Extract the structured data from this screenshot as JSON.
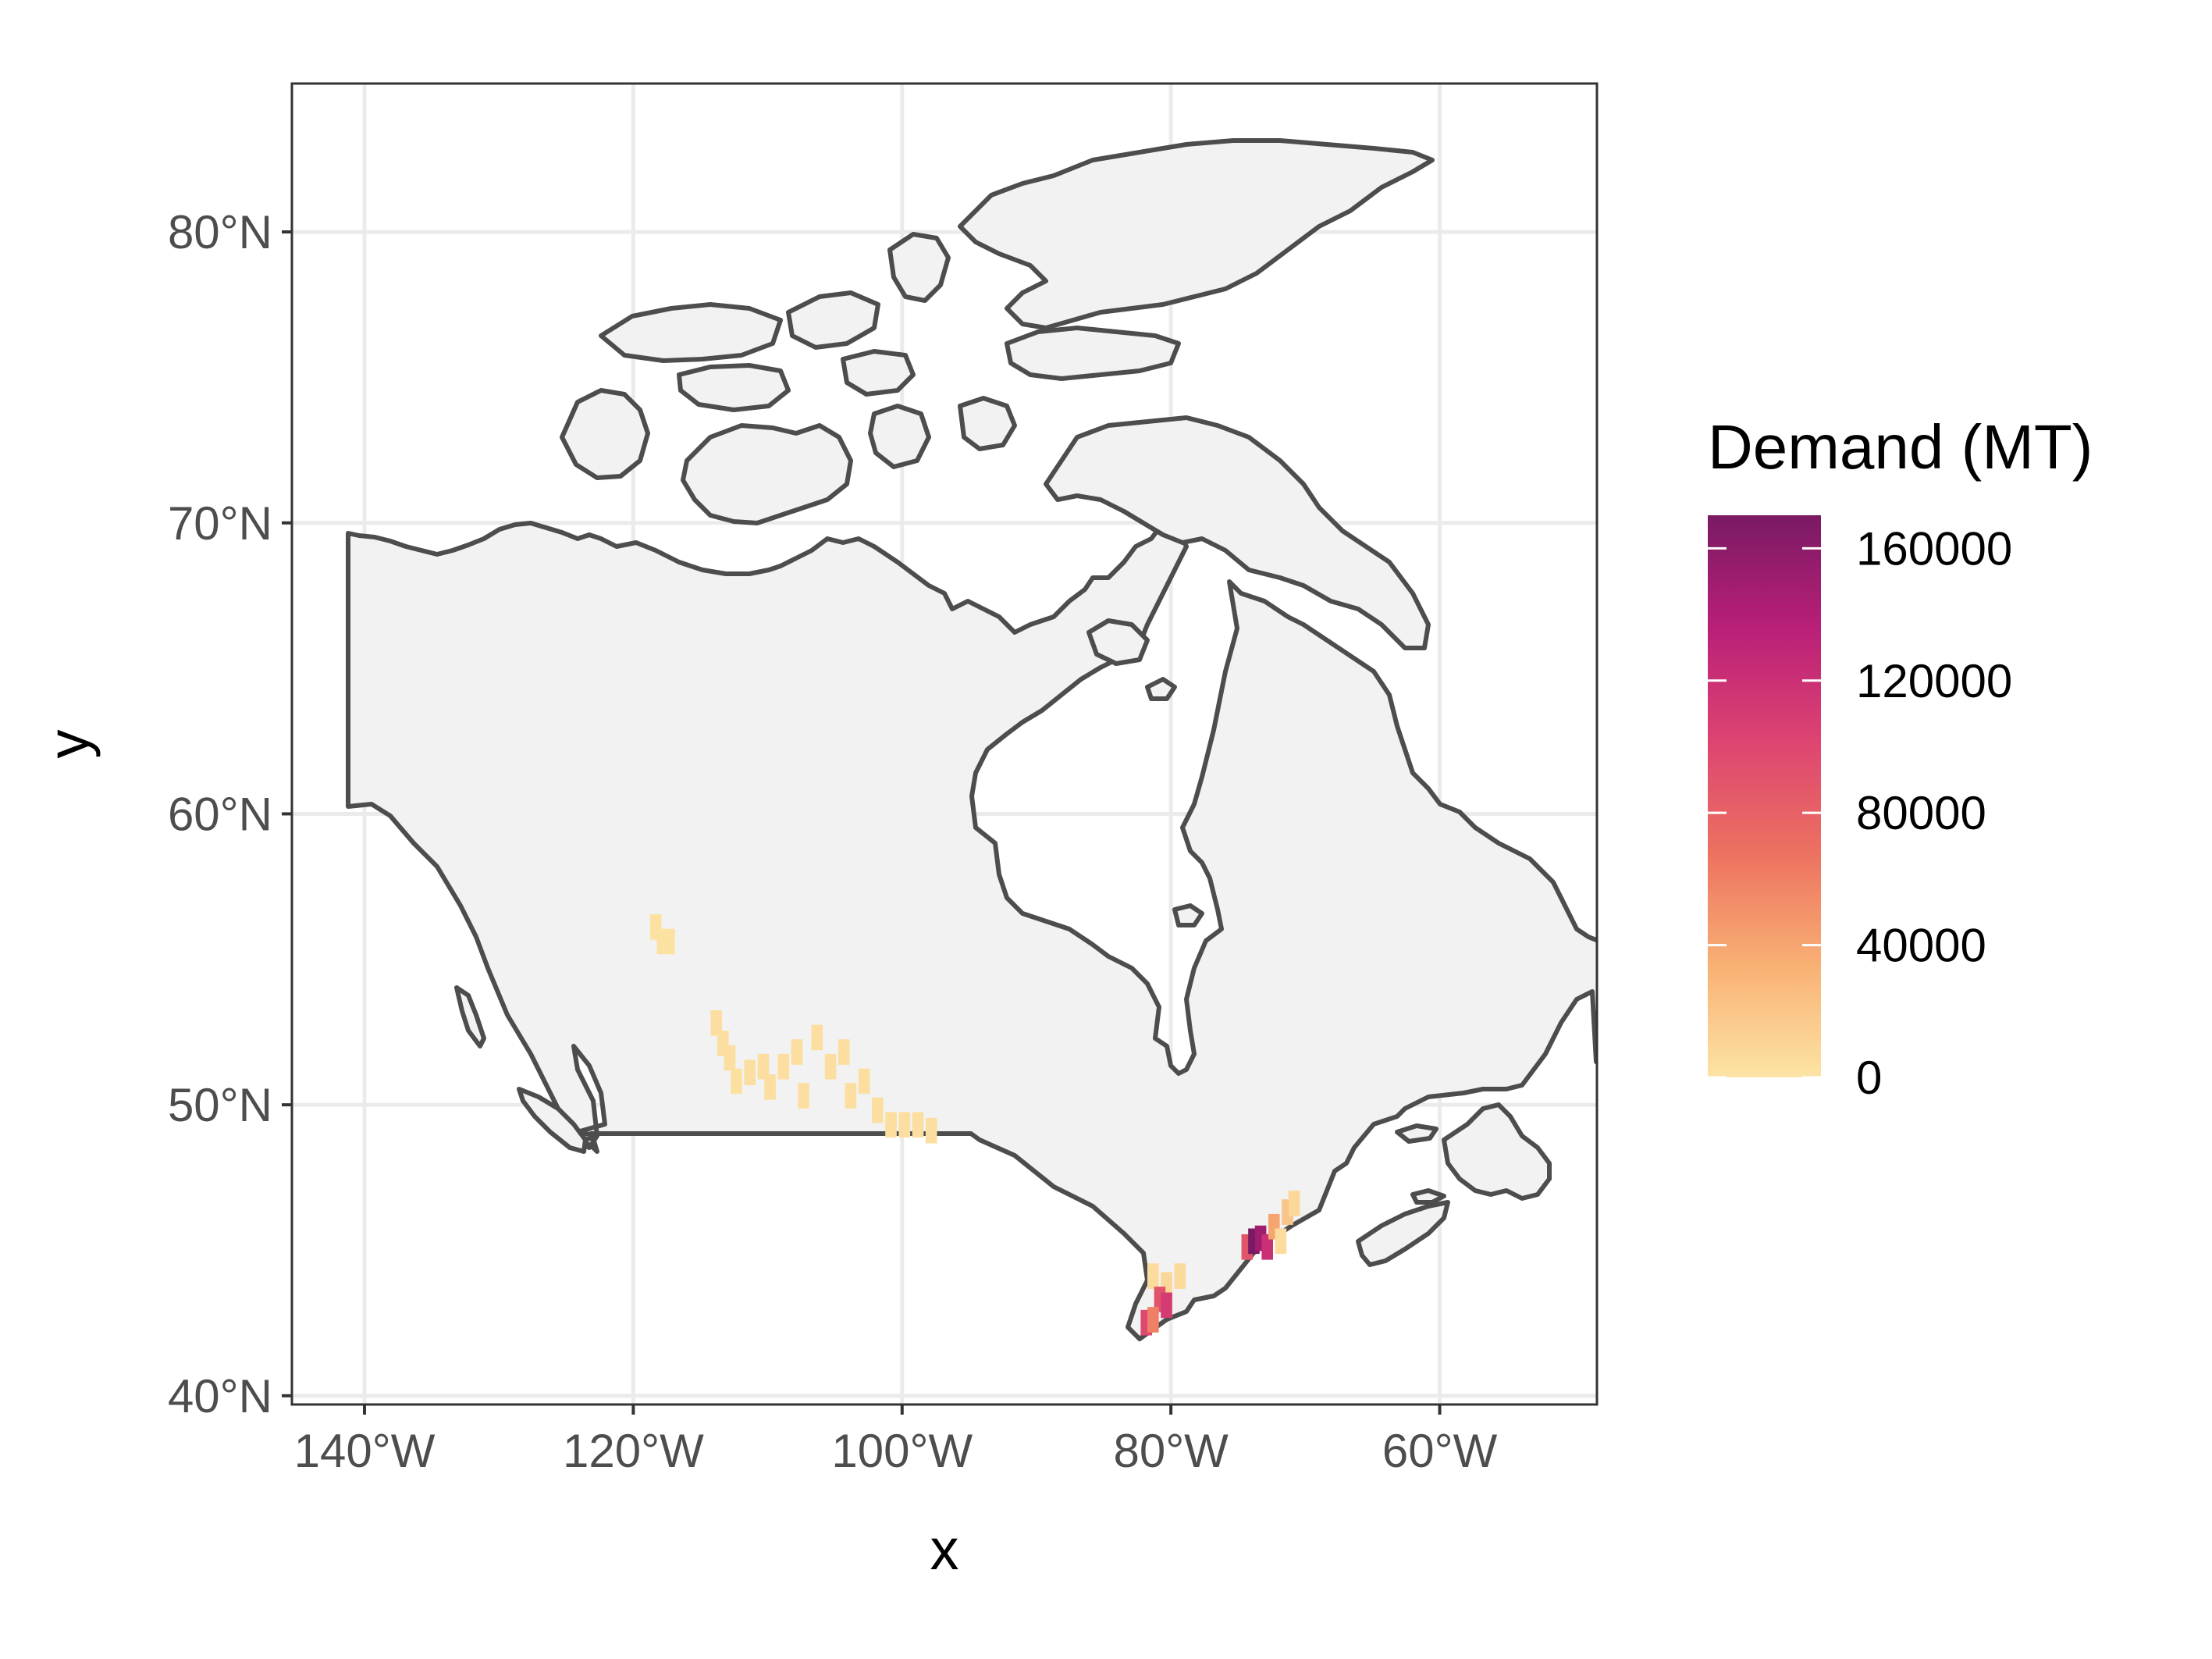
{
  "chart_data": {
    "type": "heatmap",
    "subtype": "choropleth-raster map of Canada",
    "xlabel": "x",
    "ylabel": "y",
    "x_ticks": [
      {
        "lon": -140,
        "label": "140°W"
      },
      {
        "lon": -120,
        "label": "120°W"
      },
      {
        "lon": -100,
        "label": "100°W"
      },
      {
        "lon": -80,
        "label": "80°W"
      },
      {
        "lon": -60,
        "label": "60°W"
      }
    ],
    "y_ticks": [
      {
        "lat": 40,
        "label": "40°N"
      },
      {
        "lat": 50,
        "label": "50°N"
      },
      {
        "lat": 60,
        "label": "60°N"
      },
      {
        "lat": 70,
        "label": "70°N"
      },
      {
        "lat": 80,
        "label": "80°N"
      }
    ],
    "xlim": [
      -145.4,
      -48.3
    ],
    "ylim": [
      39.7,
      85.1
    ],
    "grid": true,
    "legend": {
      "title": "Demand (MT)",
      "position": "right",
      "range": [
        0,
        170000
      ],
      "ticks": [
        0,
        40000,
        80000,
        120000,
        160000
      ],
      "tick_labels": [
        "0",
        "40000",
        "80000",
        "120000",
        "160000"
      ],
      "colors": [
        "#fce4a4",
        "#f9b074",
        "#ec7160",
        "#dd4471",
        "#b91f78",
        "#7a1a63"
      ]
    },
    "colors": {
      "land_fill": "#f2f2f2",
      "border": "#4d4d4d",
      "grid": "#ebebeb",
      "panel_border": "#333333"
    },
    "values": [
      {
        "lon": -118.5,
        "lat": 56.3,
        "value": 2000
      },
      {
        "lon": -118.0,
        "lat": 55.8,
        "value": 1500
      },
      {
        "lon": -117.5,
        "lat": 55.8,
        "value": 1500
      },
      {
        "lon": -114.0,
        "lat": 53.0,
        "value": 3000
      },
      {
        "lon": -113.5,
        "lat": 52.3,
        "value": 3000
      },
      {
        "lon": -113.0,
        "lat": 51.8,
        "value": 3000
      },
      {
        "lon": -112.5,
        "lat": 51.0,
        "value": 2500
      },
      {
        "lon": -111.5,
        "lat": 51.3,
        "value": 3000
      },
      {
        "lon": -110.5,
        "lat": 51.5,
        "value": 3000
      },
      {
        "lon": -110.0,
        "lat": 50.8,
        "value": 3000
      },
      {
        "lon": -109.0,
        "lat": 51.5,
        "value": 3000
      },
      {
        "lon": -108.0,
        "lat": 52.0,
        "value": 3000
      },
      {
        "lon": -107.5,
        "lat": 50.5,
        "value": 3000
      },
      {
        "lon": -106.5,
        "lat": 52.5,
        "value": 3000
      },
      {
        "lon": -105.5,
        "lat": 51.5,
        "value": 3000
      },
      {
        "lon": -104.5,
        "lat": 52.0,
        "value": 3000
      },
      {
        "lon": -104.0,
        "lat": 50.5,
        "value": 3000
      },
      {
        "lon": -103.0,
        "lat": 51.0,
        "value": 3000
      },
      {
        "lon": -102.0,
        "lat": 50.0,
        "value": 3000
      },
      {
        "lon": -101.0,
        "lat": 49.5,
        "value": 3000
      },
      {
        "lon": -100.0,
        "lat": 49.5,
        "value": 3000
      },
      {
        "lon": -99.0,
        "lat": 49.5,
        "value": 3000
      },
      {
        "lon": -98.0,
        "lat": 49.3,
        "value": 3000
      },
      {
        "lon": -81.5,
        "lat": 44.3,
        "value": 5000
      },
      {
        "lon": -80.5,
        "lat": 44.0,
        "value": 8000
      },
      {
        "lon": -79.5,
        "lat": 44.3,
        "value": 6000
      },
      {
        "lon": -81.0,
        "lat": 43.5,
        "value": 90000
      },
      {
        "lon": -80.5,
        "lat": 43.3,
        "value": 110000
      },
      {
        "lon": -82.0,
        "lat": 42.7,
        "value": 100000
      },
      {
        "lon": -81.5,
        "lat": 42.8,
        "value": 60000
      },
      {
        "lon": -74.5,
        "lat": 45.3,
        "value": 90000
      },
      {
        "lon": -74.0,
        "lat": 45.5,
        "value": 170000
      },
      {
        "lon": -73.5,
        "lat": 45.6,
        "value": 150000
      },
      {
        "lon": -73.0,
        "lat": 45.3,
        "value": 120000
      },
      {
        "lon": -72.5,
        "lat": 46.0,
        "value": 40000
      },
      {
        "lon": -72.0,
        "lat": 45.5,
        "value": 5000
      },
      {
        "lon": -71.5,
        "lat": 46.5,
        "value": 20000
      },
      {
        "lon": -71.0,
        "lat": 46.8,
        "value": 8000
      }
    ]
  }
}
